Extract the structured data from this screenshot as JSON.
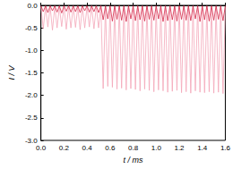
{
  "chart_data": {
    "type": "line",
    "x_label": "t / ms",
    "y_label": "I / V",
    "xlim": [
      0,
      1.6
    ],
    "ylim": [
      -3,
      0
    ],
    "xticks": [
      {
        "value": 0,
        "label": "0.0"
      },
      {
        "value": 0.2,
        "label": "0.2"
      },
      {
        "value": 0.4,
        "label": "0.4"
      },
      {
        "value": 0.6,
        "label": "0.6"
      },
      {
        "value": 0.8,
        "label": "0.8"
      },
      {
        "value": 1,
        "label": "1.0"
      },
      {
        "value": 1.2,
        "label": "1.2"
      },
      {
        "value": 1.4,
        "label": "1.4"
      },
      {
        "value": 1.6,
        "label": "1.6"
      }
    ],
    "yticks": [
      {
        "value": -3,
        "label": "-3.0"
      },
      {
        "value": -2.5,
        "label": "-2.5"
      },
      {
        "value": -2,
        "label": "-2.0"
      },
      {
        "value": -1.5,
        "label": "-1.5"
      },
      {
        "value": -1,
        "label": "-1.0"
      },
      {
        "value": -0.5,
        "label": "-0.5"
      },
      {
        "value": 0,
        "label": "0.0"
      }
    ],
    "grid": false,
    "x": [
      0,
      0.02,
      0.04,
      0.06,
      0.08,
      0.1,
      0.12,
      0.14,
      0.16,
      0.18,
      0.2,
      0.22,
      0.24,
      0.26,
      0.28,
      0.3,
      0.32,
      0.34,
      0.36,
      0.38,
      0.4,
      0.42,
      0.44,
      0.46,
      0.48,
      0.5,
      0.52,
      0.54,
      0.56,
      0.58,
      0.6,
      0.62,
      0.64,
      0.66,
      0.68,
      0.7,
      0.72,
      0.74,
      0.76,
      0.78,
      0.8,
      0.82,
      0.84,
      0.86,
      0.88,
      0.9,
      0.92,
      0.94,
      0.96,
      0.98,
      1,
      1.02,
      1.04,
      1.06,
      1.08,
      1.1,
      1.12,
      1.14,
      1.16,
      1.18,
      1.2,
      1.22,
      1.24,
      1.26,
      1.28,
      1.3,
      1.32,
      1.34,
      1.36,
      1.38,
      1.4,
      1.42,
      1.44,
      1.46,
      1.48,
      1.5,
      1.52,
      1.54,
      1.56,
      1.58,
      1.6
    ],
    "series": [
      {
        "color": "#f4a7b9",
        "values": [
          -0.03,
          -0.52,
          -0.03,
          -0.48,
          -0.03,
          -0.55,
          -0.03,
          -0.5,
          -0.03,
          -0.47,
          -0.03,
          -0.53,
          -0.03,
          -0.5,
          -0.03,
          -0.49,
          -0.03,
          -0.54,
          -0.03,
          -0.5,
          -0.03,
          -0.48,
          -0.03,
          -0.52,
          -0.03,
          -0.5,
          -0.03,
          -1.85,
          -0.03,
          -1.8,
          -0.03,
          -1.82,
          -0.03,
          -1.86,
          -0.03,
          -1.84,
          -0.03,
          -1.88,
          -0.03,
          -1.85,
          -0.03,
          -1.87,
          -0.03,
          -1.9,
          -0.03,
          -1.86,
          -0.03,
          -1.89,
          -0.03,
          -1.92,
          -0.03,
          -1.88,
          -0.03,
          -1.9,
          -0.03,
          -1.93,
          -0.03,
          -1.91,
          -0.03,
          -1.89,
          -0.03,
          -1.94,
          -0.03,
          -1.92,
          -0.03,
          -1.95,
          -0.03,
          -1.9,
          -0.03,
          -1.93,
          -0.03,
          -1.94,
          -0.03,
          -1.92,
          -0.03,
          -1.95,
          -0.03,
          -1.93,
          -0.03,
          -1.96,
          -0.03
        ]
      },
      {
        "color": "#d42a4a",
        "values": [
          -0.01,
          -0.14,
          -0.01,
          -0.16,
          -0.01,
          -0.12,
          -0.01,
          -0.15,
          -0.01,
          -0.17,
          -0.01,
          -0.13,
          -0.01,
          -0.15,
          -0.01,
          -0.14,
          -0.01,
          -0.16,
          -0.01,
          -0.12,
          -0.01,
          -0.15,
          -0.01,
          -0.14,
          -0.01,
          -0.16,
          -0.01,
          -0.32,
          -0.01,
          -0.3,
          -0.01,
          -0.35,
          -0.01,
          -0.31,
          -0.01,
          -0.33,
          -0.01,
          -0.36,
          -0.01,
          -0.3,
          -0.01,
          -0.34,
          -0.01,
          -0.32,
          -0.01,
          -0.35,
          -0.01,
          -0.31,
          -0.01,
          -0.33,
          -0.01,
          -0.3,
          -0.01,
          -0.36,
          -0.01,
          -0.34,
          -0.01,
          -0.32,
          -0.01,
          -0.35,
          -0.01,
          -0.31,
          -0.01,
          -0.33,
          -0.01,
          -0.34,
          -0.01,
          -0.3,
          -0.01,
          -0.36,
          -0.01,
          -0.32,
          -0.01,
          -0.35,
          -0.01,
          -0.33,
          -0.01,
          -0.31,
          -0.01,
          -0.34,
          -0.01
        ]
      }
    ]
  }
}
